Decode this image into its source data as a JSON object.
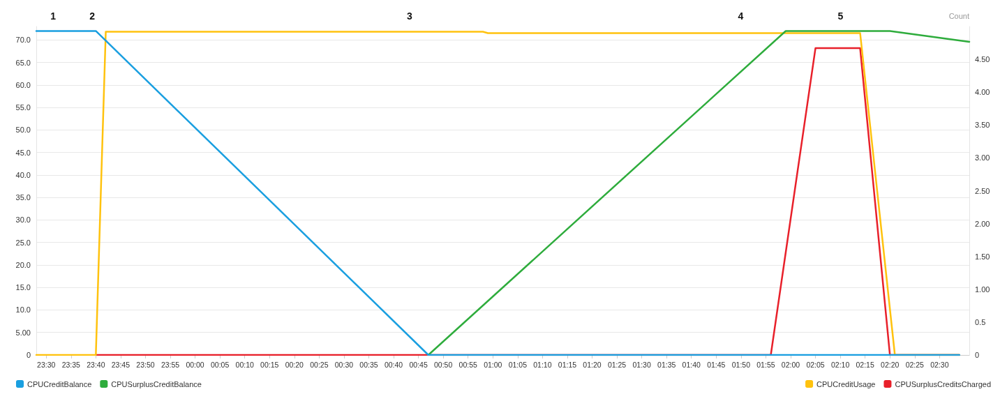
{
  "chart_data": {
    "type": "line",
    "y2label": "Count",
    "marker": "none",
    "line_style": "solid",
    "grid": "y",
    "legend": "bottom",
    "xlim": [
      "--01-01T23:28",
      "--01-02T02:36"
    ],
    "xticks": [
      {
        "value": "--01-01T23:30",
        "label": "23:30"
      },
      {
        "value": "--01-01T23:35",
        "label": "23:35"
      },
      {
        "value": "--01-01T23:40",
        "label": "23:40"
      },
      {
        "value": "--01-01T23:45",
        "label": "23:45"
      },
      {
        "value": "--01-01T23:50",
        "label": "23:50"
      },
      {
        "value": "--01-01T23:55",
        "label": "23:55"
      },
      {
        "value": "--01-02T00:00",
        "label": "00:00"
      },
      {
        "value": "--01-02T00:05",
        "label": "00:05"
      },
      {
        "value": "--01-02T00:10",
        "label": "00:10"
      },
      {
        "value": "--01-02T00:15",
        "label": "00:15"
      },
      {
        "value": "--01-02T00:20",
        "label": "00:20"
      },
      {
        "value": "--01-02T00:25",
        "label": "00:25"
      },
      {
        "value": "--01-02T00:30",
        "label": "00:30"
      },
      {
        "value": "--01-02T00:35",
        "label": "00:35"
      },
      {
        "value": "--01-02T00:40",
        "label": "00:40"
      },
      {
        "value": "--01-02T00:45",
        "label": "00:45"
      },
      {
        "value": "--01-02T00:50",
        "label": "00:50"
      },
      {
        "value": "--01-02T00:55",
        "label": "00:55"
      },
      {
        "value": "--01-02T01:00",
        "label": "01:00"
      },
      {
        "value": "--01-02T01:05",
        "label": "01:05"
      },
      {
        "value": "--01-02T01:10",
        "label": "01:10"
      },
      {
        "value": "--01-02T01:15",
        "label": "01:15"
      },
      {
        "value": "--01-02T01:20",
        "label": "01:20"
      },
      {
        "value": "--01-02T01:25",
        "label": "01:25"
      },
      {
        "value": "--01-02T01:30",
        "label": "01:30"
      },
      {
        "value": "--01-02T01:35",
        "label": "01:35"
      },
      {
        "value": "--01-02T01:40",
        "label": "01:40"
      },
      {
        "value": "--01-02T01:45",
        "label": "01:45"
      },
      {
        "value": "--01-02T01:50",
        "label": "01:50"
      },
      {
        "value": "--01-02T01:55",
        "label": "01:55"
      },
      {
        "value": "--01-02T02:00",
        "label": "02:00"
      },
      {
        "value": "--01-02T02:05",
        "label": "02:05"
      },
      {
        "value": "--01-02T02:10",
        "label": "02:10"
      },
      {
        "value": "--01-02T02:15",
        "label": "02:15"
      },
      {
        "value": "--01-02T02:20",
        "label": "02:20"
      },
      {
        "value": "--01-02T02:25",
        "label": "02:25"
      },
      {
        "value": "--01-02T02:30",
        "label": "02:30"
      }
    ],
    "ylim": [
      0,
      73
    ],
    "yticks": [
      0,
      {
        "value": 5,
        "label": "5.00"
      },
      {
        "value": 10,
        "label": "10.0"
      },
      {
        "value": 15,
        "label": "15.0"
      },
      {
        "value": 20,
        "label": "20.0"
      },
      {
        "value": 25,
        "label": "25.0"
      },
      {
        "value": 30,
        "label": "30.0"
      },
      {
        "value": 35,
        "label": "35.0"
      },
      {
        "value": 40,
        "label": "40.0"
      },
      {
        "value": 45,
        "label": "45.0"
      },
      {
        "value": 50,
        "label": "50.0"
      },
      {
        "value": 55,
        "label": "55.0"
      },
      {
        "value": 60,
        "label": "60.0"
      },
      {
        "value": 65,
        "label": "65.0"
      },
      {
        "value": 70,
        "label": "70.0"
      }
    ],
    "y2lim": [
      0,
      5
    ],
    "y2ticks": [
      0,
      0.5,
      {
        "value": 1,
        "label": "1.00"
      },
      {
        "value": 1.5,
        "label": "1.50"
      },
      {
        "value": 2,
        "label": "2.00"
      },
      {
        "value": 2.5,
        "label": "2.50"
      },
      {
        "value": 3,
        "label": "3.00"
      },
      {
        "value": 3.5,
        "label": "3.50"
      },
      {
        "value": 4,
        "label": "4.00"
      },
      {
        "value": 4.5,
        "label": "4.50"
      }
    ],
    "annotations": [
      "1",
      "2",
      "3",
      "4",
      "5"
    ],
    "series": [
      {
        "name": "CPUSurplusCreditsCharged",
        "color": "#e8202a",
        "axis": "y2",
        "x": [
          "--01-01T23:40",
          "--01-02T01:56",
          "--01-02T02:05",
          "--01-02T02:14",
          "--01-02T02:20",
          "--01-02T02:34"
        ],
        "values": [
          0,
          0,
          4.67,
          4.67,
          0,
          0
        ]
      },
      {
        "name": "CPUCreditUsage",
        "color": "#ffc20e",
        "axis": "y2",
        "x": [
          "--01-01T23:28",
          "--01-01T23:40",
          "--01-01T23:42",
          "--01-02T00:58",
          "--01-02T00:59",
          "--01-02T02:14",
          "--01-02T02:21",
          "--01-02T02:34"
        ],
        "values": [
          0,
          0,
          4.92,
          4.92,
          4.9,
          4.9,
          0,
          0
        ]
      },
      {
        "name": "CPUSurplusCreditBalance",
        "color": "#2eac3c",
        "x": [
          "--01-02T00:47",
          "--01-02T01:59",
          "--01-02T02:20",
          "--01-02T02:36"
        ],
        "values": [
          0,
          72,
          72,
          69.6
        ]
      },
      {
        "name": "CPUCreditBalance",
        "color": "#1a9fe0",
        "x": [
          "--01-01T23:28",
          "--01-01T23:40",
          "--01-02T00:47",
          "--01-02T02:34"
        ],
        "values": [
          72,
          72,
          0,
          0
        ]
      }
    ]
  }
}
